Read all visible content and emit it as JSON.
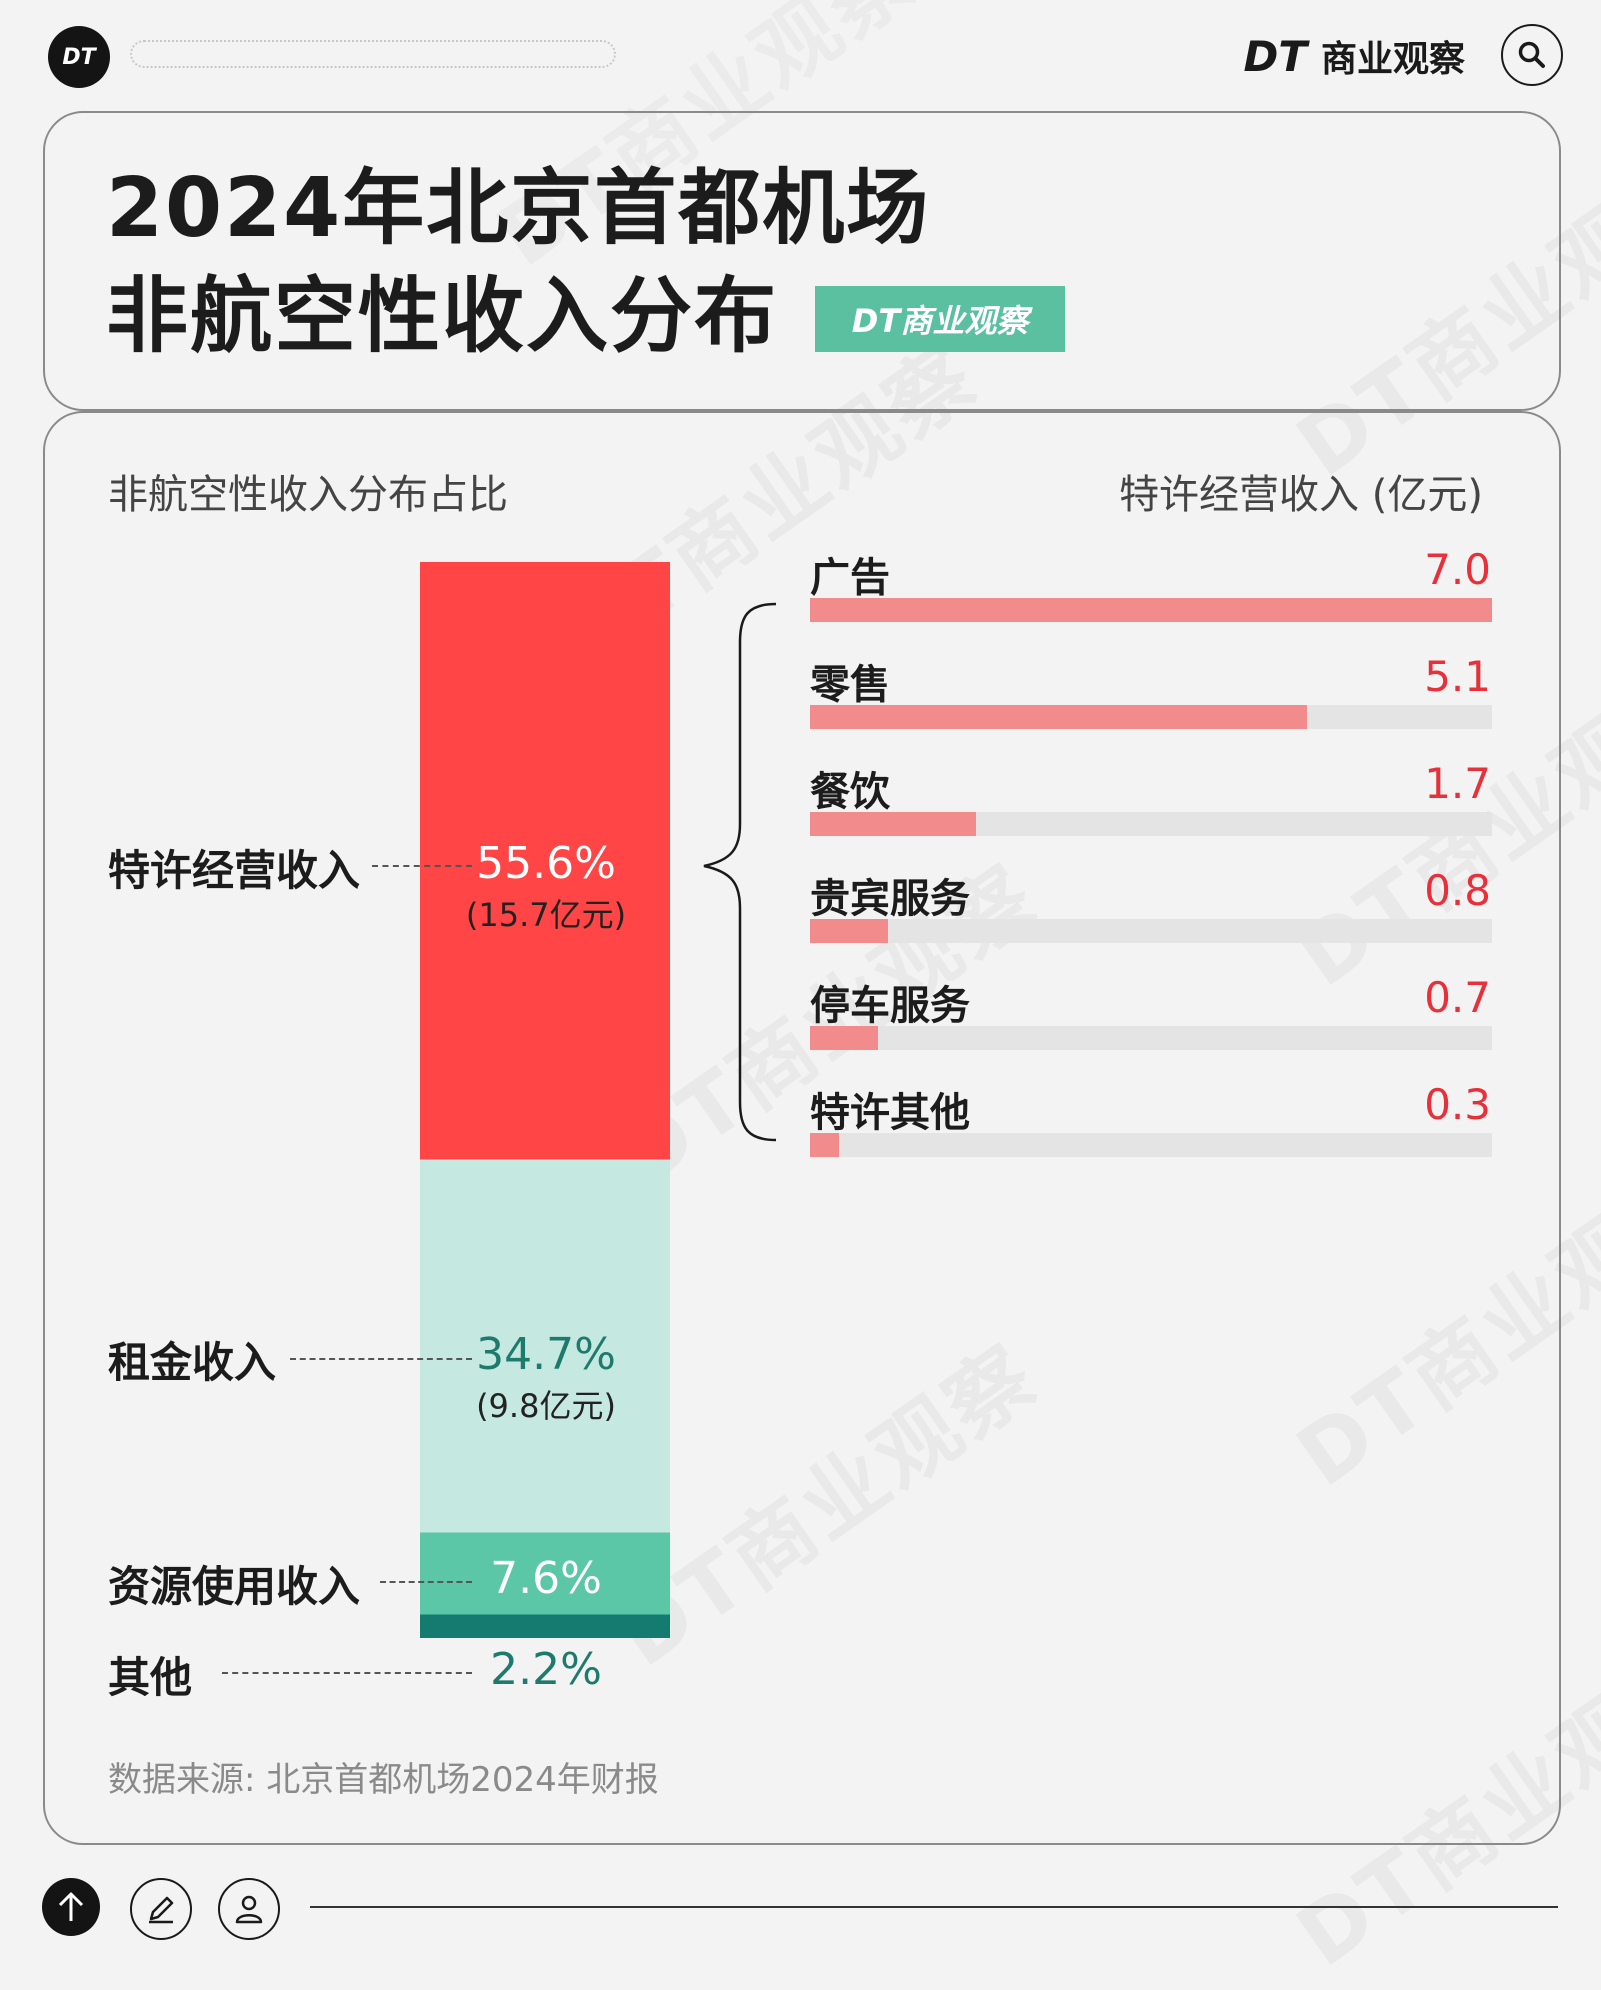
{
  "header": {
    "logo": "DT",
    "brand_logo": "DT",
    "brand_name": "商业观察"
  },
  "title_line1": "2024年北京首都机场",
  "title_line2": "非航空性收入分布",
  "badge": "DT商业观察",
  "watermark": "DT商业观察",
  "left_subtitle": "非航空性收入分布占比",
  "right_subtitle": "特许经营收入 (亿元)",
  "source": "数据来源: 北京首都机场2024年财报",
  "icons": [
    "search-icon",
    "arrow-up-icon",
    "pencil-icon",
    "user-icon"
  ],
  "chart_data": [
    {
      "type": "bar",
      "stacked": true,
      "unit": "%",
      "categories": [
        "特许经营收入",
        "租金收入",
        "资源使用收入",
        "其他"
      ],
      "values": [
        55.6,
        34.7,
        7.6,
        2.2
      ],
      "value_labels": [
        "55.6%",
        "34.7%",
        "7.6%",
        "2.2%"
      ],
      "amount_labels": [
        "(15.7亿元)",
        "(9.8亿元)",
        "",
        ""
      ],
      "colors": [
        "#ff4545",
        "#c5e9e0",
        "#5cc7a6",
        "#157a6f"
      ],
      "label_colors": [
        "#ffffff",
        "#1f7a6e",
        "#ffffff",
        "#1f7a6e"
      ]
    },
    {
      "type": "bar",
      "orientation": "horizontal",
      "title": "特许经营收入 (亿元)",
      "categories": [
        "广告",
        "零售",
        "餐饮",
        "贵宾服务",
        "停车服务",
        "特许其他"
      ],
      "values": [
        7.0,
        5.1,
        1.7,
        0.8,
        0.7,
        0.3
      ],
      "value_labels": [
        "7.0",
        "5.1",
        "1.7",
        "0.8",
        "0.7",
        "0.3"
      ],
      "xlim": [
        0,
        7.0
      ],
      "colors": {
        "fill": "#f28b8b",
        "track": "#e4e4e4",
        "value_text": "#e8303a"
      }
    }
  ]
}
